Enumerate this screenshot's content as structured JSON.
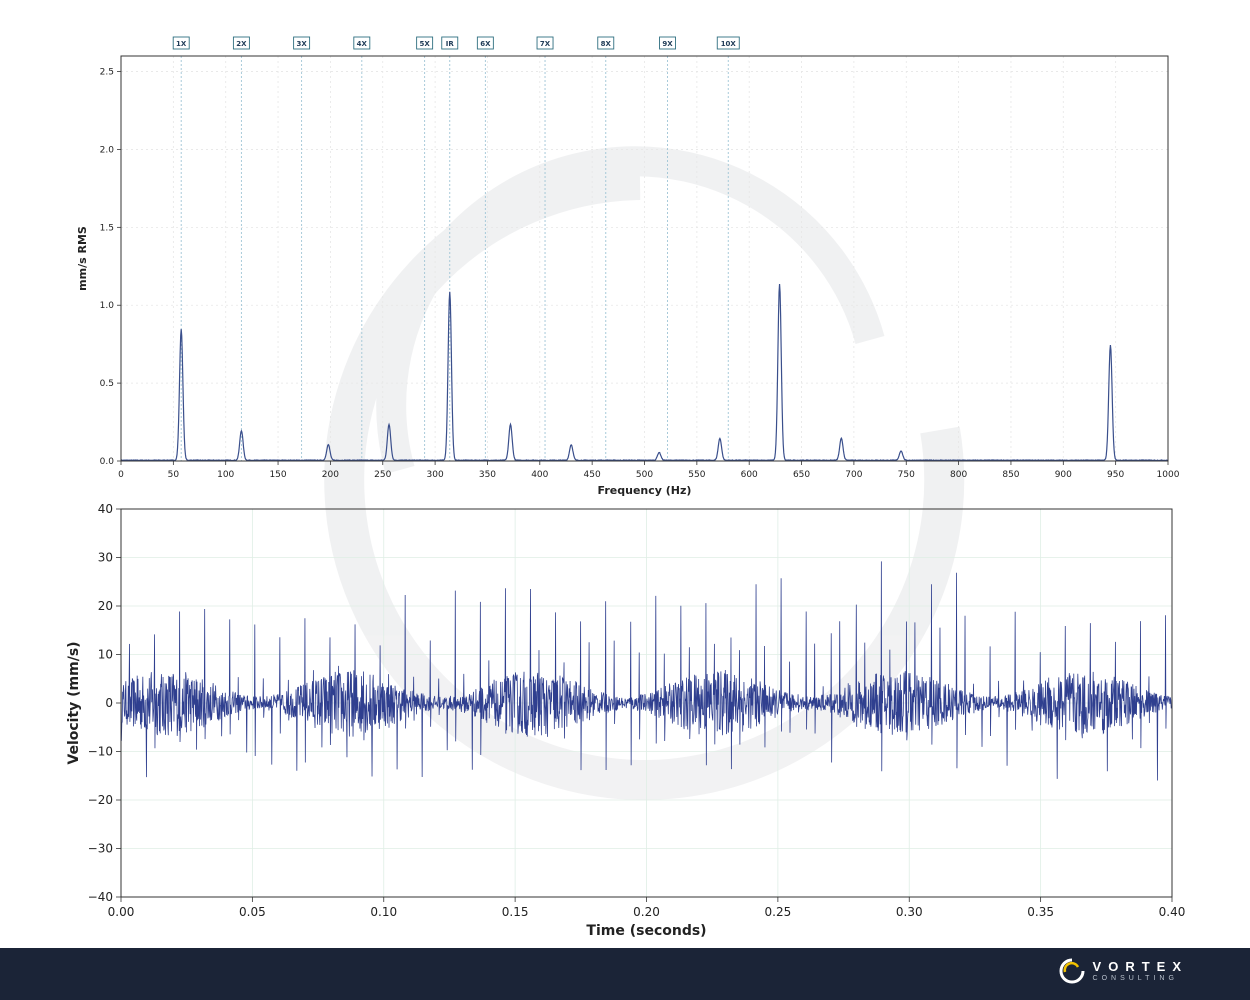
{
  "chart_data": [
    {
      "type": "line",
      "title": "",
      "xlabel": "Frequency (Hz)",
      "ylabel": "mm/s RMS",
      "xlim": [
        0,
        1000
      ],
      "ylim": [
        0,
        2.6
      ],
      "xticks": [
        0,
        50,
        100,
        150,
        200,
        250,
        300,
        350,
        400,
        450,
        500,
        550,
        600,
        650,
        700,
        750,
        800,
        850,
        900,
        950,
        1000
      ],
      "yticks": [
        "0.0",
        "0.5",
        "1.0",
        "1.5",
        "2.0",
        "2.5"
      ],
      "grid": true,
      "line_color": "#3a4f8c",
      "markers": [
        {
          "label": "1X",
          "x": 57.5
        },
        {
          "label": "2X",
          "x": 115
        },
        {
          "label": "3X",
          "x": 172.5
        },
        {
          "label": "4X",
          "x": 230
        },
        {
          "label": "5X",
          "x": 290
        },
        {
          "label": "IR",
          "x": 314
        },
        {
          "label": "6X",
          "x": 348
        },
        {
          "label": "7X",
          "x": 405
        },
        {
          "label": "8X",
          "x": 463
        },
        {
          "label": "9X",
          "x": 522
        },
        {
          "label": "10X",
          "x": 580
        }
      ],
      "peaks": [
        {
          "x": 57.5,
          "y": 0.84
        },
        {
          "x": 115,
          "y": 0.19
        },
        {
          "x": 198,
          "y": 0.1
        },
        {
          "x": 256,
          "y": 0.23
        },
        {
          "x": 314,
          "y": 1.08
        },
        {
          "x": 372,
          "y": 0.23
        },
        {
          "x": 430,
          "y": 0.1
        },
        {
          "x": 514,
          "y": 0.05
        },
        {
          "x": 572,
          "y": 0.14
        },
        {
          "x": 629,
          "y": 1.13
        },
        {
          "x": 688,
          "y": 0.14
        },
        {
          "x": 745,
          "y": 0.06
        },
        {
          "x": 945,
          "y": 0.74
        }
      ]
    },
    {
      "type": "line",
      "title": "",
      "xlabel": "Time (seconds)",
      "ylabel": "Velocity (mm/s)",
      "xlim": [
        0,
        0.4
      ],
      "ylim": [
        -40,
        40
      ],
      "xticks": [
        "0.00",
        "0.05",
        "0.10",
        "0.15",
        "0.20",
        "0.25",
        "0.30",
        "0.35",
        "0.40"
      ],
      "yticks": [
        "−40",
        "−30",
        "−20",
        "−10",
        "0",
        "10",
        "20",
        "30",
        "40"
      ],
      "grid": true,
      "line_color": "#2f3f8f",
      "impulse_period_s": 0.00318,
      "impulse_peak_range": [
        15,
        31
      ],
      "impulse_trough_range": [
        -20,
        -5
      ],
      "noise_amplitude": 7
    }
  ],
  "brand": {
    "name": "VORTEX",
    "tagline": "CONSULTING"
  }
}
